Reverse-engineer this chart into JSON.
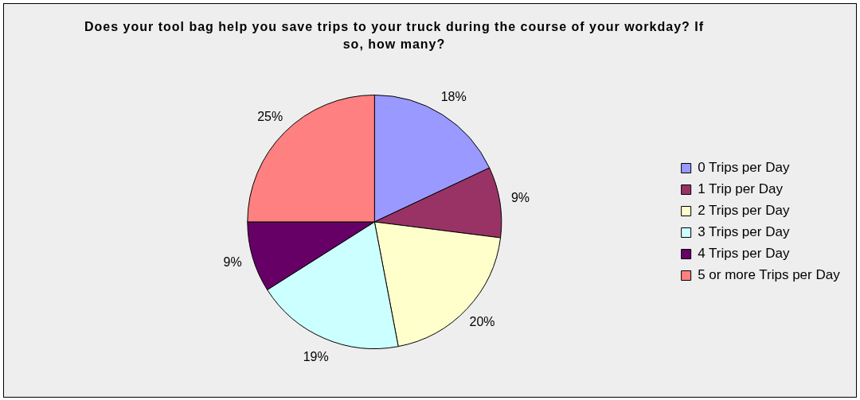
{
  "chart_data": {
    "type": "pie",
    "title": "Does your tool bag help you save trips to your truck during the course of your workday? If so, how many?",
    "categories": [
      "0 Trips per Day",
      "1 Trip per Day",
      "2 Trips per Day",
      "3 Trips per Day",
      "4 Trips per Day",
      "5 or more Trips per Day"
    ],
    "values": [
      18,
      9,
      20,
      19,
      9,
      25
    ],
    "value_labels": [
      "18%",
      "9%",
      "20%",
      "19%",
      "9%",
      "25%"
    ],
    "colors": [
      "#9999ff",
      "#993366",
      "#ffffcc",
      "#ccffff",
      "#660066",
      "#ff8080"
    ],
    "legend": "right"
  }
}
